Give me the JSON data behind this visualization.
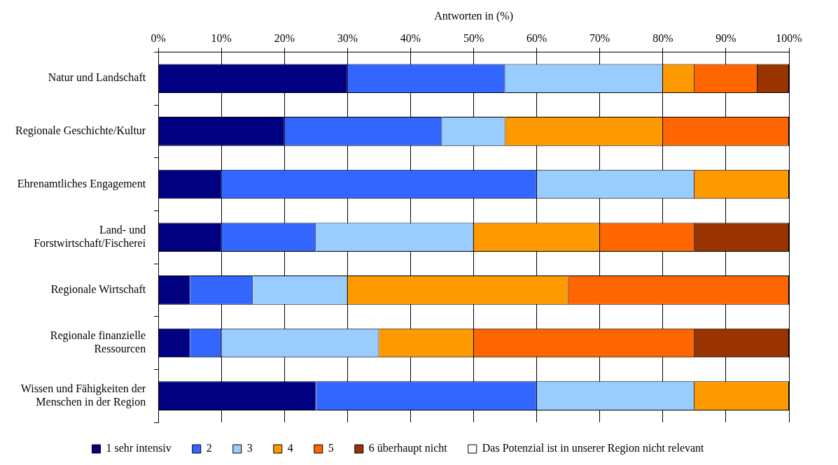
{
  "chart_data": {
    "type": "bar",
    "orientation": "horizontal",
    "stacked": true,
    "xlabel": "Antworten in (%)",
    "categories": [
      "Natur und Landschaft",
      "Regionale Geschichte/Kultur",
      "Ehrenamtliches Engagement",
      "Land- und Forstwirtschaft/Fischerei",
      "Regionale Wirtschaft",
      "Regionale finanzielle Ressourcen",
      "Wissen und Fähigkeiten der Menschen in der Region"
    ],
    "series": [
      {
        "name": "1 sehr intensiv",
        "color": "#000080",
        "values": [
          30,
          20,
          10,
          10,
          5,
          5,
          25
        ]
      },
      {
        "name": "2",
        "color": "#3366ff",
        "values": [
          25,
          25,
          50,
          15,
          10,
          5,
          35
        ]
      },
      {
        "name": "3",
        "color": "#99ccff",
        "values": [
          25,
          10,
          25,
          25,
          15,
          25,
          25
        ]
      },
      {
        "name": "4",
        "color": "#ff9900",
        "values": [
          5,
          25,
          15,
          20,
          35,
          15,
          15
        ]
      },
      {
        "name": "5",
        "color": "#ff6600",
        "values": [
          10,
          20,
          0,
          15,
          35,
          35,
          0
        ]
      },
      {
        "name": "6 überhaupt nicht",
        "color": "#993300",
        "values": [
          5,
          0,
          0,
          15,
          0,
          15,
          0
        ]
      },
      {
        "name": "Das Potenzial ist in unserer Region nicht relevant",
        "color": "#ffffff",
        "values": [
          0,
          0,
          0,
          0,
          0,
          0,
          0
        ]
      }
    ],
    "xlim": [
      0,
      100
    ],
    "xticks": [
      {
        "value": 0,
        "label": "0%"
      },
      {
        "value": 10,
        "label": "10%"
      },
      {
        "value": 20,
        "label": "20%"
      },
      {
        "value": 30,
        "label": "30%"
      },
      {
        "value": 40,
        "label": "40%"
      },
      {
        "value": 50,
        "label": "50%"
      },
      {
        "value": 60,
        "label": "60%"
      },
      {
        "value": 70,
        "label": "70%"
      },
      {
        "value": 80,
        "label": "80%"
      },
      {
        "value": 90,
        "label": "90%"
      },
      {
        "value": 100,
        "label": "100%"
      }
    ],
    "grid": "x",
    "legend": "bottom"
  }
}
